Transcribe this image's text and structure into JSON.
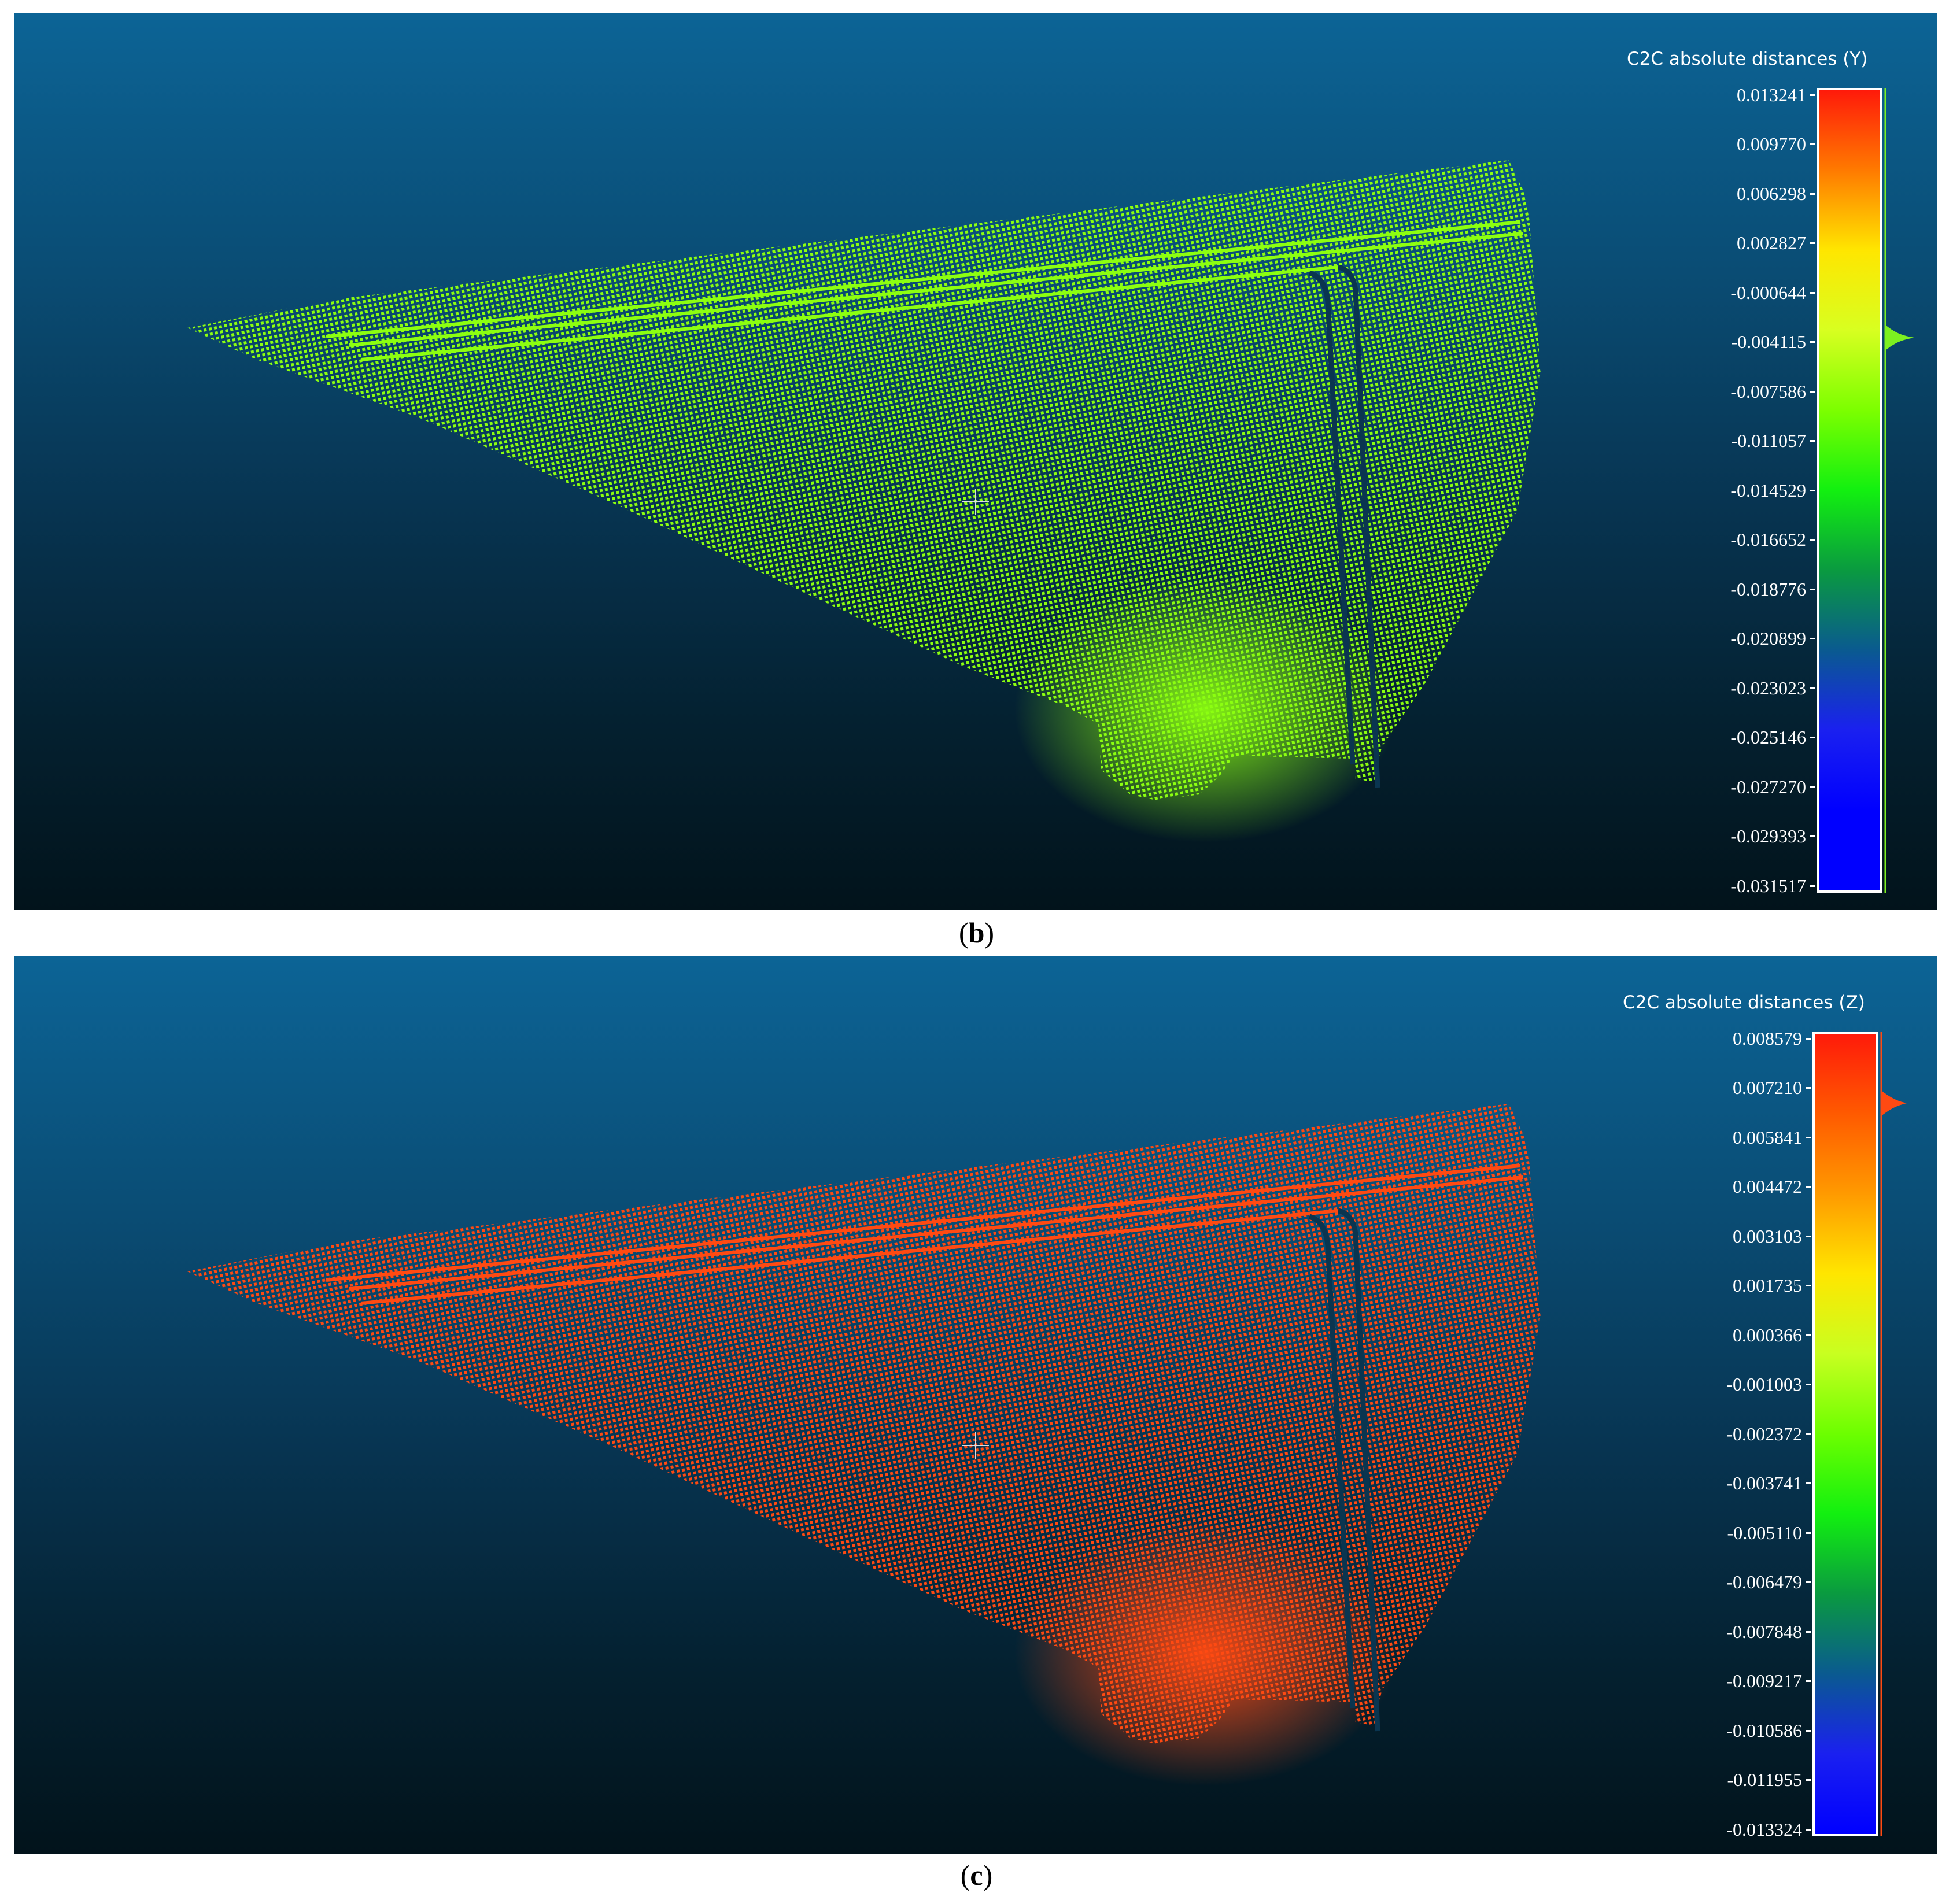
{
  "panels": [
    {
      "id": "b",
      "caption_open": "(",
      "caption_letter": "b",
      "caption_close": ")",
      "scale_title": "C2C absolute distances (Y)",
      "cloud_color": "#8cff10",
      "cloud_color_dark": "#6fd60c",
      "histogram_color": "#7df020",
      "gradient": [
        "#ff1a0a",
        "#ff7a00",
        "#ffe600",
        "#d8ff20",
        "#7cff00",
        "#12f010",
        "#0a9a40",
        "#0a5a90",
        "#1a20f0",
        "#0000ff",
        "#0000ff"
      ],
      "ticks": [
        "0.013241",
        "0.009770",
        "0.006298",
        "0.002827",
        "-0.000644",
        "-0.004115",
        "-0.007586",
        "-0.011057",
        "-0.014529",
        "-0.016652",
        "-0.018776",
        "-0.020899",
        "-0.023023",
        "-0.025146",
        "-0.027270",
        "-0.029393",
        "-0.031517"
      ]
    },
    {
      "id": "c",
      "caption_open": "(",
      "caption_letter": "c",
      "caption_close": ")",
      "scale_title": "C2C absolute distances (Z)",
      "cloud_color": "#ff4a12",
      "cloud_color_dark": "#e03a10",
      "histogram_color": "#ff4a12",
      "gradient": [
        "#ff1a0a",
        "#ff5a00",
        "#ff9a00",
        "#ffe600",
        "#c8ff20",
        "#6cff00",
        "#12f010",
        "#0a9a40",
        "#0a5a90",
        "#1a20f0",
        "#0000ff"
      ],
      "ticks": [
        "0.008579",
        "0.007210",
        "0.005841",
        "0.004472",
        "0.003103",
        "0.001735",
        "0.000366",
        "-0.001003",
        "-0.002372",
        "-0.003741",
        "-0.005110",
        "-0.006479",
        "-0.007848",
        "-0.009217",
        "-0.010586",
        "-0.011955",
        "-0.013324"
      ]
    }
  ]
}
